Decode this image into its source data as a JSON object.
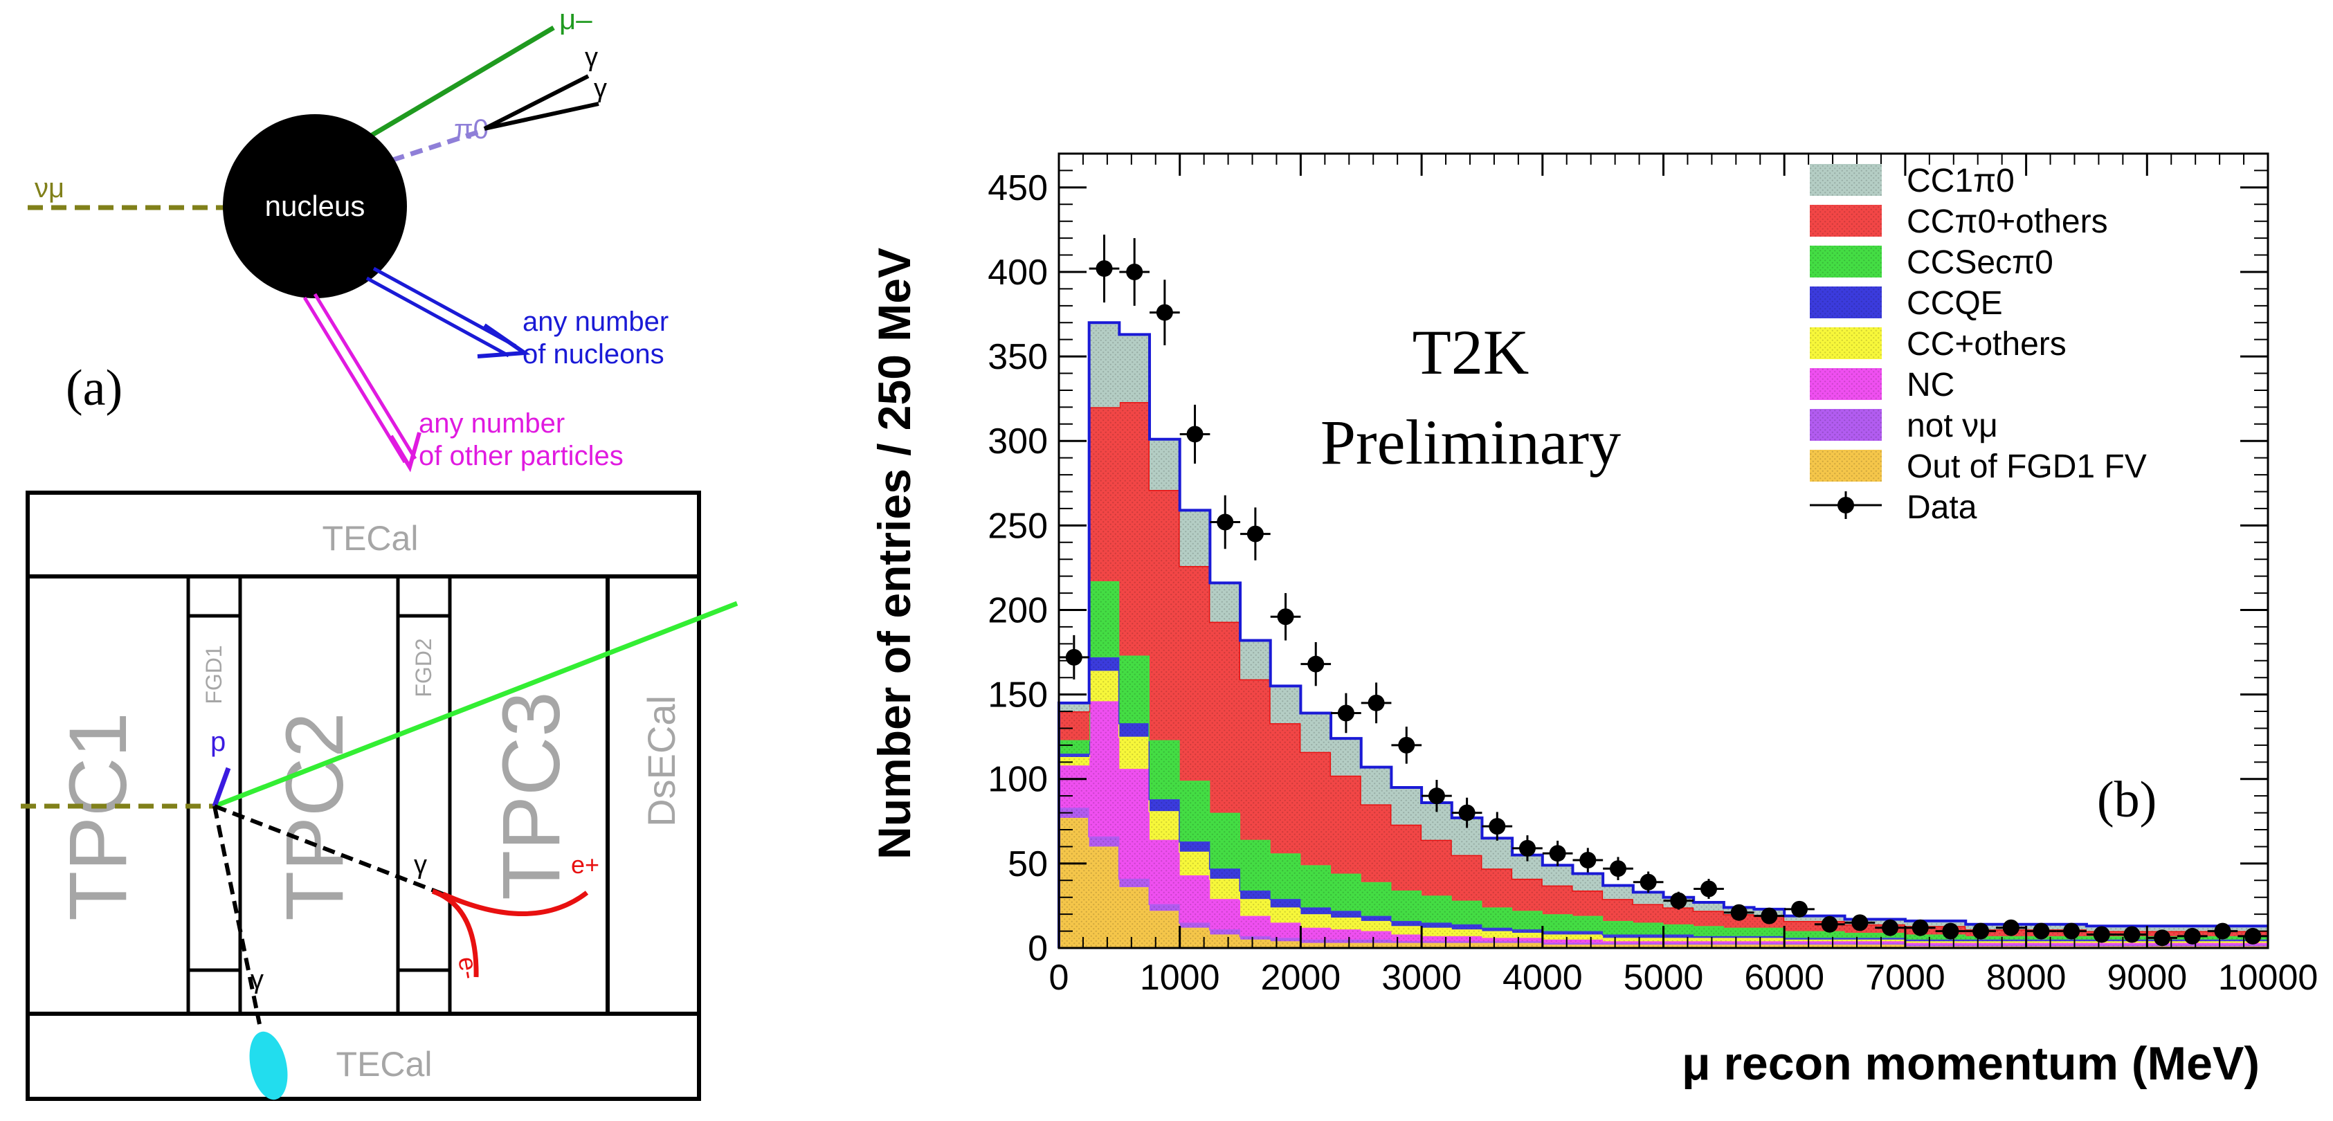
{
  "panel_a": {
    "label": "(a)",
    "interaction": {
      "nu": "νμ",
      "nucleus": "nucleus",
      "muon": "μ–",
      "pi0": "π0",
      "gamma": "γ",
      "nucleons_1": "any number",
      "nucleons_2": "of nucleons",
      "others_1": "any number",
      "others_2": "of other particles"
    },
    "detector": {
      "tecal_top": "TECal",
      "tecal_bottom": "TECal",
      "tpc1": "TPC1",
      "tpc2": "TPC2",
      "tpc3": "TPC3",
      "fgd1": "FGD1",
      "fgd2": "FGD2",
      "dsecal": "DsECal",
      "proton": "p",
      "gamma1": "γ",
      "gamma2": "γ",
      "eplus": "e+",
      "eminus": "e-"
    },
    "colors": {
      "nu": "#80801a",
      "muon": "#1f9a1f",
      "pi0": "#8f7fd8",
      "nucleons": "#1a1ad6",
      "others": "#e01ae0",
      "track": "#33ee33",
      "electron": "#e81010",
      "cluster": "#22ddee"
    }
  },
  "chart_data": {
    "type": "bar",
    "subtype": "stacked-step-histogram",
    "panel_label": "(b)",
    "watermark_1": "T2K",
    "watermark_2": "Preliminary",
    "xlabel": "μ recon momentum (MeV)",
    "ylabel": "Number of entries / 250 MeV",
    "xlim": [
      0,
      10000
    ],
    "ylim": [
      0,
      470
    ],
    "bin_width": 250,
    "xticks": [
      0,
      1000,
      2000,
      3000,
      4000,
      5000,
      6000,
      7000,
      8000,
      9000,
      10000
    ],
    "yticks": [
      0,
      50,
      100,
      150,
      200,
      250,
      300,
      350,
      400,
      450
    ],
    "legend_position": "top-right",
    "series": [
      {
        "name": "Out of FGD1 FV",
        "color": "#f5c64a",
        "values": [
          77,
          60,
          36,
          22,
          12,
          8,
          5,
          4,
          3,
          3,
          3,
          3,
          3,
          3,
          3,
          3,
          2,
          2,
          2,
          2,
          2,
          2,
          2,
          2,
          2,
          2,
          2,
          2,
          1,
          1,
          1,
          1,
          1,
          1,
          1,
          1,
          1,
          1,
          1,
          1
        ]
      },
      {
        "name": "not νμ",
        "color": "#b25cf0",
        "values": [
          6,
          6,
          5,
          4,
          3,
          3,
          2,
          2,
          2,
          2,
          2,
          1,
          1,
          1,
          1,
          1,
          1,
          1,
          1,
          1,
          1,
          1,
          1,
          1,
          1,
          1,
          1,
          1,
          1,
          1,
          1,
          1,
          1,
          1,
          1,
          1,
          1,
          1,
          1,
          1
        ]
      },
      {
        "name": "NC",
        "color": "#ef4ff0",
        "values": [
          25,
          80,
          65,
          38,
          28,
          18,
          12,
          9,
          7,
          6,
          5,
          4,
          3,
          3,
          2,
          2,
          2,
          2,
          1,
          1,
          1,
          1,
          1,
          1,
          1,
          1,
          1,
          1,
          1,
          1,
          1,
          1,
          1,
          1,
          1,
          1,
          1,
          1,
          1,
          1
        ]
      },
      {
        "name": "CC+others",
        "color": "#f7f73a",
        "values": [
          5,
          18,
          19,
          17,
          14,
          12,
          10,
          9,
          8,
          7,
          6,
          5,
          5,
          4,
          4,
          3,
          3,
          3,
          2,
          2,
          2,
          2,
          2,
          2,
          1,
          1,
          1,
          1,
          1,
          1,
          1,
          1,
          1,
          1,
          1,
          1,
          1,
          1,
          1,
          1
        ]
      },
      {
        "name": "CCQE",
        "color": "#3b3bdd",
        "values": [
          2,
          8,
          8,
          7,
          6,
          6,
          5,
          5,
          4,
          4,
          3,
          3,
          3,
          3,
          2,
          2,
          2,
          2,
          2,
          2,
          2,
          1,
          1,
          1,
          1,
          1,
          1,
          1,
          1,
          1,
          1,
          1,
          1,
          1,
          1,
          1,
          1,
          1,
          1,
          1
        ]
      },
      {
        "name": "CCSecπ0",
        "color": "#44dd44",
        "values": [
          8,
          45,
          40,
          35,
          36,
          33,
          30,
          27,
          25,
          22,
          20,
          18,
          16,
          14,
          12,
          11,
          10,
          9,
          8,
          7,
          6,
          6,
          5,
          5,
          4,
          4,
          3,
          3,
          3,
          3,
          2,
          2,
          2,
          2,
          2,
          2,
          2,
          2,
          2,
          2
        ]
      },
      {
        "name": "CCπ0+others",
        "color": "#f24646",
        "values": [
          17,
          103,
          150,
          148,
          127,
          113,
          95,
          77,
          67,
          58,
          46,
          39,
          33,
          27,
          23,
          19,
          17,
          15,
          13,
          11,
          10,
          9,
          8,
          7,
          6,
          6,
          5,
          5,
          5,
          5,
          4,
          4,
          4,
          4,
          3,
          3,
          3,
          3,
          3,
          3
        ]
      },
      {
        "name": "CC1π0",
        "color": "#b4cdc4",
        "values": [
          5,
          50,
          40,
          30,
          33,
          23,
          23,
          22,
          23,
          22,
          22,
          22,
          22,
          22,
          18,
          14,
          12,
          10,
          8,
          7,
          6,
          5,
          4,
          4,
          3,
          3,
          3,
          3,
          3,
          3,
          3,
          3,
          3,
          3,
          3,
          3,
          3,
          3,
          3,
          3
        ]
      },
      {
        "name": "Data",
        "color": "#000000",
        "values": [
          172,
          402,
          400,
          376,
          304,
          252,
          245,
          196,
          168,
          139,
          145,
          120,
          90,
          80,
          72,
          59,
          56,
          52,
          47,
          39,
          28,
          35,
          21,
          19,
          23,
          14,
          15,
          12,
          12,
          10,
          10,
          12,
          10,
          10,
          8,
          8,
          6,
          7,
          10,
          7
        ]
      }
    ],
    "legend": [
      "CC1π0",
      "CCπ0+others",
      "CCSecπ0",
      "CCQE",
      "CC+others",
      "NC",
      "not νμ",
      "Out of FGD1 FV",
      "Data"
    ]
  }
}
